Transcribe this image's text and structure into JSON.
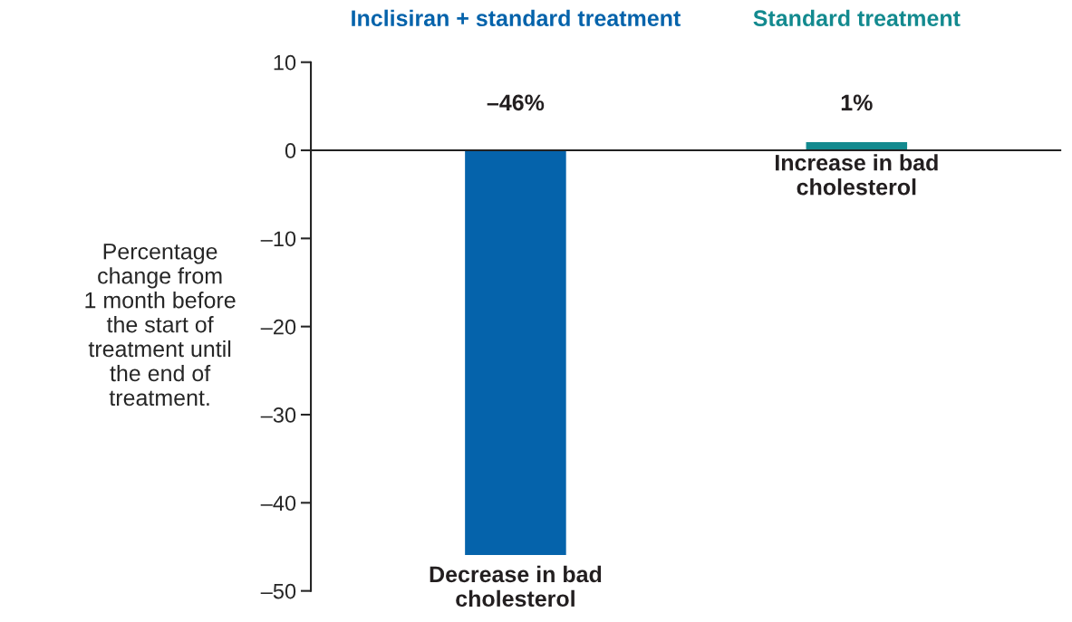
{
  "chart_data": {
    "type": "bar",
    "categories": [
      "Inclisiran + standard treatment",
      "Standard treatment"
    ],
    "values": [
      -46,
      1
    ],
    "colors": [
      "#0563ab",
      "#138a8f"
    ],
    "value_labels": [
      "–46%",
      "1%"
    ],
    "ylabel": "Percentage\nchange from\n1 month before\nthe start of\ntreatment until\nthe end of\ntreatment.",
    "ylim": [
      -50,
      10
    ],
    "yticks": [
      10,
      0,
      {
        "value": -10,
        "label": "–10"
      },
      {
        "value": -20,
        "label": "–20"
      },
      {
        "value": -30,
        "label": "–30"
      },
      {
        "value": -40,
        "label": "–40"
      },
      {
        "value": -50,
        "label": "–50"
      }
    ],
    "annotations": [
      {
        "text": "Decrease in bad\ncholesterol",
        "x": "Inclisiran + standard treatment",
        "y": -46
      },
      {
        "text": "Increase in bad\ncholesterol",
        "x": "Standard treatment",
        "y": 1
      }
    ],
    "ref_lines": [
      {
        "axis": "y",
        "value": 0,
        "color": "#222222"
      }
    ],
    "legend": false
  }
}
